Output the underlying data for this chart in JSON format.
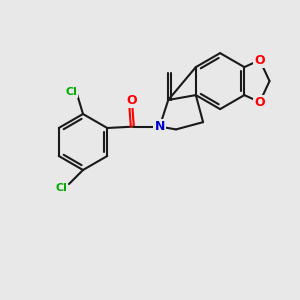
{
  "bg_color": "#e8e8e8",
  "bond_color": "#1a1a1a",
  "atom_colors": {
    "O": "#ff0000",
    "N": "#0000cc",
    "Cl": "#00aa00"
  },
  "figsize": [
    3.0,
    3.0
  ],
  "dpi": 100
}
